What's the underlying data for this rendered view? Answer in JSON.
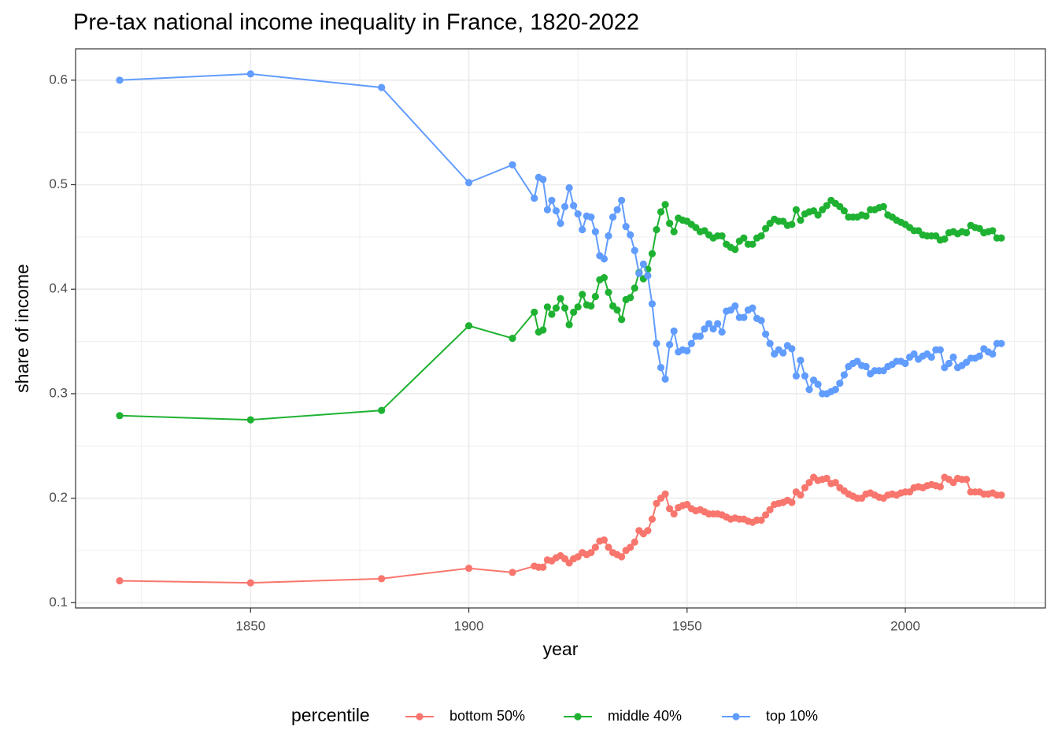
{
  "chart_data": {
    "type": "line",
    "markers": true,
    "title": "Pre-tax national income inequality in France, 1820-2022",
    "x_label": "year",
    "y_label": "share of income",
    "legend_title": "percentile",
    "legend_position": "bottom",
    "x": [
      1820,
      1850,
      1880,
      1900,
      1910,
      1915,
      1916,
      1917,
      1918,
      1919,
      1920,
      1921,
      1922,
      1923,
      1924,
      1925,
      1926,
      1927,
      1928,
      1929,
      1930,
      1931,
      1932,
      1933,
      1934,
      1935,
      1936,
      1937,
      1938,
      1939,
      1940,
      1941,
      1942,
      1943,
      1944,
      1945,
      1946,
      1947,
      1948,
      1949,
      1950,
      1951,
      1952,
      1953,
      1954,
      1955,
      1956,
      1957,
      1958,
      1959,
      1960,
      1961,
      1962,
      1963,
      1964,
      1965,
      1966,
      1967,
      1968,
      1969,
      1970,
      1971,
      1972,
      1973,
      1974,
      1975,
      1976,
      1977,
      1978,
      1979,
      1980,
      1981,
      1982,
      1983,
      1984,
      1985,
      1986,
      1987,
      1988,
      1989,
      1990,
      1991,
      1992,
      1993,
      1994,
      1995,
      1996,
      1997,
      1998,
      1999,
      2000,
      2001,
      2002,
      2003,
      2004,
      2005,
      2006,
      2007,
      2008,
      2009,
      2010,
      2011,
      2012,
      2013,
      2014,
      2015,
      2016,
      2017,
      2018,
      2019,
      2020,
      2021,
      2022
    ],
    "series": [
      {
        "name": "bottom 50%",
        "color": "#F8766D",
        "values": [
          0.121,
          0.119,
          0.123,
          0.133,
          0.129,
          0.135,
          0.134,
          0.134,
          0.141,
          0.14,
          0.143,
          0.145,
          0.142,
          0.138,
          0.142,
          0.144,
          0.148,
          0.146,
          0.148,
          0.153,
          0.159,
          0.16,
          0.153,
          0.148,
          0.146,
          0.144,
          0.15,
          0.153,
          0.158,
          0.169,
          0.166,
          0.169,
          0.18,
          0.195,
          0.2,
          0.204,
          0.19,
          0.185,
          0.191,
          0.193,
          0.194,
          0.19,
          0.188,
          0.189,
          0.187,
          0.185,
          0.185,
          0.185,
          0.184,
          0.182,
          0.18,
          0.181,
          0.18,
          0.18,
          0.178,
          0.177,
          0.179,
          0.179,
          0.184,
          0.189,
          0.194,
          0.195,
          0.196,
          0.198,
          0.196,
          0.206,
          0.203,
          0.21,
          0.215,
          0.22,
          0.217,
          0.218,
          0.219,
          0.214,
          0.215,
          0.21,
          0.207,
          0.204,
          0.202,
          0.2,
          0.2,
          0.204,
          0.205,
          0.203,
          0.201,
          0.2,
          0.203,
          0.204,
          0.203,
          0.205,
          0.206,
          0.206,
          0.21,
          0.211,
          0.21,
          0.212,
          0.213,
          0.212,
          0.211,
          0.22,
          0.218,
          0.215,
          0.219,
          0.218,
          0.218,
          0.206,
          0.206,
          0.206,
          0.204,
          0.204,
          0.205,
          0.203,
          0.203
        ]
      },
      {
        "name": "middle 40%",
        "color": "#1FB232",
        "values": [
          0.279,
          0.275,
          0.284,
          0.365,
          0.353,
          0.378,
          0.359,
          0.361,
          0.383,
          0.376,
          0.382,
          0.391,
          0.382,
          0.366,
          0.378,
          0.383,
          0.395,
          0.385,
          0.384,
          0.393,
          0.409,
          0.411,
          0.397,
          0.384,
          0.38,
          0.371,
          0.39,
          0.392,
          0.401,
          0.416,
          0.41,
          0.419,
          0.434,
          0.457,
          0.474,
          0.481,
          0.463,
          0.455,
          0.468,
          0.466,
          0.465,
          0.462,
          0.459,
          0.455,
          0.456,
          0.452,
          0.449,
          0.451,
          0.451,
          0.443,
          0.44,
          0.438,
          0.446,
          0.449,
          0.443,
          0.443,
          0.449,
          0.451,
          0.458,
          0.463,
          0.467,
          0.465,
          0.465,
          0.461,
          0.462,
          0.476,
          0.466,
          0.472,
          0.474,
          0.475,
          0.471,
          0.476,
          0.48,
          0.485,
          0.482,
          0.479,
          0.475,
          0.469,
          0.469,
          0.469,
          0.471,
          0.47,
          0.476,
          0.476,
          0.478,
          0.479,
          0.471,
          0.469,
          0.466,
          0.464,
          0.462,
          0.459,
          0.456,
          0.456,
          0.452,
          0.451,
          0.451,
          0.451,
          0.447,
          0.448,
          0.454,
          0.455,
          0.453,
          0.455,
          0.454,
          0.461,
          0.459,
          0.458,
          0.454,
          0.455,
          0.456,
          0.449,
          0.449
        ]
      },
      {
        "name": "top 10%",
        "color": "#619CFF",
        "values": [
          0.6,
          0.606,
          0.593,
          0.502,
          0.519,
          0.487,
          0.507,
          0.505,
          0.476,
          0.485,
          0.475,
          0.463,
          0.479,
          0.497,
          0.48,
          0.472,
          0.457,
          0.47,
          0.469,
          0.455,
          0.432,
          0.429,
          0.451,
          0.469,
          0.476,
          0.485,
          0.46,
          0.452,
          0.437,
          0.415,
          0.424,
          0.413,
          0.386,
          0.348,
          0.325,
          0.314,
          0.347,
          0.36,
          0.34,
          0.342,
          0.341,
          0.348,
          0.355,
          0.355,
          0.362,
          0.367,
          0.362,
          0.367,
          0.359,
          0.379,
          0.38,
          0.384,
          0.373,
          0.373,
          0.38,
          0.382,
          0.372,
          0.37,
          0.357,
          0.348,
          0.338,
          0.342,
          0.339,
          0.346,
          0.343,
          0.317,
          0.332,
          0.317,
          0.304,
          0.313,
          0.309,
          0.3,
          0.3,
          0.302,
          0.304,
          0.31,
          0.318,
          0.326,
          0.329,
          0.331,
          0.327,
          0.326,
          0.319,
          0.322,
          0.322,
          0.322,
          0.326,
          0.328,
          0.331,
          0.331,
          0.329,
          0.335,
          0.338,
          0.333,
          0.336,
          0.338,
          0.335,
          0.342,
          0.342,
          0.325,
          0.329,
          0.335,
          0.325,
          0.327,
          0.33,
          0.334,
          0.334,
          0.336,
          0.343,
          0.34,
          0.338,
          0.348,
          0.348
        ]
      }
    ],
    "xlim": [
      1809.9,
      2032.1
    ],
    "xticks": [
      1850,
      1900,
      1950,
      2000
    ],
    "xminor": [
      1825,
      1875,
      1925,
      1975,
      2025
    ],
    "ylim": [
      0.095,
      0.63
    ],
    "yticks": [
      0.1,
      0.2,
      0.3,
      0.4,
      0.5,
      0.6
    ],
    "yminor": [
      0.15,
      0.25,
      0.35,
      0.45,
      0.55
    ],
    "grid": true
  }
}
